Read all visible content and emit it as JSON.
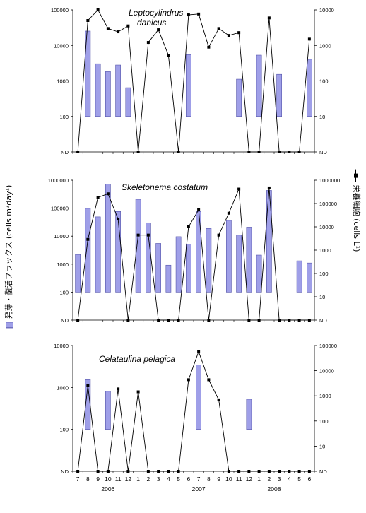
{
  "y_label_left": "発芽・復活フラックス (cells m²day¹)",
  "y_label_right": "栄養細胞 (cells L¹)",
  "colors": {
    "bar": "#9f9fe8",
    "bar_edge": "#5555aa",
    "line": "#000000",
    "axis": "#000000"
  },
  "x_axis": {
    "months": [
      "7",
      "8",
      "9",
      "10",
      "11",
      "12",
      "1",
      "2",
      "3",
      "4",
      "5",
      "6",
      "7",
      "8",
      "9",
      "10",
      "11",
      "12",
      "1",
      "2",
      "3",
      "4",
      "5",
      "6"
    ],
    "years": [
      "2006",
      "2007",
      "2008"
    ]
  },
  "chart_data": [
    {
      "type": "bar+line",
      "title": "Leptocylindrus danicus",
      "title_lines": [
        "Leptocylindrus",
        "danicus"
      ],
      "left_axis": {
        "ticks": [
          "100000",
          "10000",
          "1000",
          "100",
          "ND"
        ],
        "scale": "log",
        "ylim": [
          10,
          100000
        ]
      },
      "right_axis": {
        "ticks": [
          "10000",
          "1000",
          "100",
          "10",
          "ND"
        ],
        "scale": "log",
        "ylim": [
          1,
          10000
        ]
      },
      "bars": [
        null,
        16000,
        950,
        480,
        850,
        120,
        null,
        null,
        null,
        null,
        null,
        2100,
        null,
        null,
        null,
        null,
        250,
        null,
        2000,
        null,
        380,
        null,
        null,
        1400
      ],
      "line": [
        0,
        4000,
        10000,
        2000,
        1500,
        2500,
        0,
        600,
        1800,
        200,
        0,
        6500,
        7000,
        400,
        2000,
        1100,
        1400,
        0,
        0,
        5000,
        0,
        0,
        0,
        800
      ]
    },
    {
      "type": "bar+line",
      "title": "Skeletonema costatum",
      "title_lines": [
        "Skeletonema costatum"
      ],
      "left_axis": {
        "ticks": [
          "1000000",
          "100000",
          "10000",
          "1000",
          "100",
          "ND"
        ],
        "scale": "log",
        "ylim": [
          10,
          1000000
        ]
      },
      "right_axis": {
        "ticks": [
          "1000000",
          "100000",
          "10000",
          "1000",
          "100",
          "10",
          "ND"
        ],
        "scale": "log",
        "ylim": [
          1,
          1000000
        ]
      },
      "bars": [
        480,
        55000,
        23000,
        680000,
        40000,
        null,
        140000,
        12500,
        1500,
        160,
        3000,
        1400,
        40000,
        7000,
        null,
        16000,
        3500,
        8000,
        450,
        350000,
        null,
        null,
        250,
        200
      ],
      "line": [
        0,
        900,
        130000,
        200000,
        10000,
        0,
        1500,
        1500,
        0,
        0,
        0,
        4000,
        30000,
        0,
        1500,
        20000,
        350000,
        0,
        0,
        400000,
        0,
        0,
        0,
        0
      ]
    },
    {
      "type": "bar+line",
      "title": "Celataulina pelagica",
      "title_lines": [
        "Celataulina pelagica"
      ],
      "left_axis": {
        "ticks": [
          "10000",
          "1000",
          "100",
          "ND"
        ],
        "scale": "log",
        "ylim": [
          10,
          10000
        ]
      },
      "right_axis": {
        "ticks": [
          "100000",
          "10000",
          "1000",
          "100",
          "10",
          "ND"
        ],
        "scale": "log",
        "ylim": [
          1,
          100000
        ]
      },
      "bars": [
        null,
        600,
        null,
        230,
        null,
        null,
        null,
        null,
        null,
        null,
        null,
        null,
        2000,
        null,
        null,
        null,
        null,
        120,
        null,
        null,
        null,
        null,
        null,
        null
      ],
      "line": [
        0,
        1000,
        0,
        0,
        700,
        0,
        500,
        0,
        0,
        0,
        0,
        2000,
        50000,
        2000,
        200,
        0,
        0,
        0,
        0,
        0,
        0,
        0,
        0,
        0
      ]
    }
  ]
}
